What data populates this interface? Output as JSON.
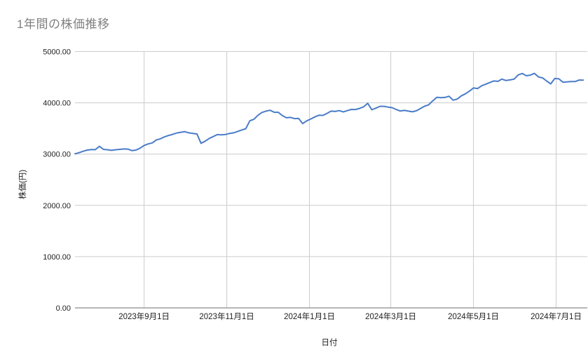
{
  "chart": {
    "title": "1年間の株価推移",
    "colors": {
      "title": "#808080",
      "series_line": "#4a7cc8",
      "gridline": "#cccccc",
      "axis_baseline": "#8a8a8a",
      "tick_label": "#1f1f1f",
      "background": "#ffffff"
    }
  },
  "chart_data": {
    "type": "line",
    "title": "1年間の株価推移",
    "xlabel": "日付",
    "ylabel": "株価(円)",
    "ylim": [
      0,
      5000
    ],
    "grid": true,
    "legend": false,
    "y_ticks": [
      {
        "value": 0,
        "label": "0.00"
      },
      {
        "value": 1000,
        "label": "1000.00"
      },
      {
        "value": 2000,
        "label": "2000.00"
      },
      {
        "value": 3000,
        "label": "3000.00"
      },
      {
        "value": 4000,
        "label": "4000.00"
      },
      {
        "value": 5000,
        "label": "5000.00"
      }
    ],
    "x_ticks": [
      {
        "label": "2023年9月1日",
        "day": 51
      },
      {
        "label": "2023年11月1日",
        "day": 112
      },
      {
        "label": "2024年1月1日",
        "day": 173
      },
      {
        "label": "2024年3月1日",
        "day": 233
      },
      {
        "label": "2024年5月1日",
        "day": 294
      },
      {
        "label": "2024年7月1日",
        "day": 355
      }
    ],
    "x_range_days": [
      0,
      378
    ],
    "x_start_date_estimate": "2023-07-12",
    "x_interval_days": 3,
    "values": [
      3005,
      3028,
      3055,
      3078,
      3088,
      3086,
      3152,
      3092,
      3085,
      3072,
      3085,
      3092,
      3100,
      3097,
      3068,
      3078,
      3115,
      3168,
      3198,
      3218,
      3275,
      3298,
      3335,
      3363,
      3385,
      3410,
      3425,
      3438,
      3415,
      3403,
      3392,
      3210,
      3252,
      3305,
      3342,
      3380,
      3376,
      3382,
      3402,
      3415,
      3442,
      3470,
      3495,
      3650,
      3678,
      3758,
      3812,
      3838,
      3855,
      3815,
      3815,
      3750,
      3708,
      3715,
      3692,
      3695,
      3595,
      3648,
      3685,
      3725,
      3758,
      3755,
      3795,
      3838,
      3832,
      3848,
      3822,
      3848,
      3872,
      3870,
      3890,
      3922,
      3990,
      3865,
      3896,
      3932,
      3932,
      3916,
      3905,
      3870,
      3840,
      3852,
      3838,
      3825,
      3845,
      3890,
      3935,
      3962,
      4040,
      4108,
      4100,
      4105,
      4128,
      4052,
      4072,
      4135,
      4175,
      4228,
      4290,
      4278,
      4332,
      4362,
      4395,
      4427,
      4418,
      4462,
      4435,
      4448,
      4462,
      4545,
      4572,
      4528,
      4540,
      4575,
      4505,
      4485,
      4425,
      4370,
      4475,
      4468,
      4402,
      4408,
      4416,
      4415,
      4445,
      4442
    ]
  }
}
